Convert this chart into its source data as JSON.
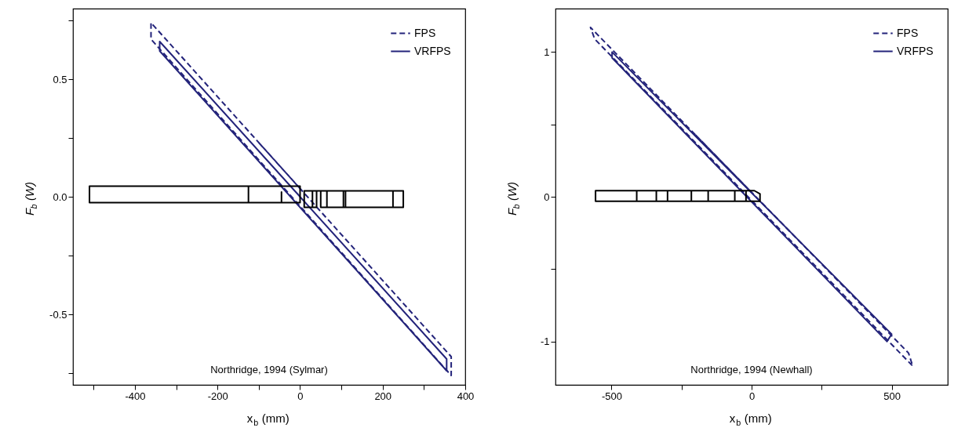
{
  "chart_data": [
    {
      "type": "line",
      "xlabel": "x$_{b}$ (mm)",
      "ylabel": "F$_{b}$ (W)",
      "annotations": [
        "Northridge, 1994 (Sylmar)"
      ],
      "xlim": [
        -550,
        400
      ],
      "xticks": [
        {
          "value": -500,
          "label": null
        },
        -400,
        {
          "value": -300,
          "label": null
        },
        -200,
        {
          "value": -100,
          "label": null
        },
        0,
        {
          "value": 100,
          "label": null
        },
        200,
        {
          "value": 300,
          "label": null
        },
        400
      ],
      "ylim": [
        -0.8,
        0.8
      ],
      "yticks": [
        {
          "value": -0.75,
          "label": null
        },
        -0.5,
        {
          "value": -0.25,
          "label": null
        },
        {
          "value": 0,
          "label": "0.0"
        },
        {
          "value": 0.25,
          "label": null
        },
        0.5,
        {
          "value": 0.75,
          "label": null
        }
      ],
      "grid": false,
      "legend": "top right",
      "series": [
        {
          "name": "FPS",
          "color": "#23237a",
          "line_style": "dashed",
          "x": [
            -100,
            366,
            366,
            -361,
            -361,
            0
          ],
          "values": [
            0.23,
            -0.68,
            -0.76,
            0.67,
            0.74,
            0.035
          ]
        },
        {
          "name": "VRFPS",
          "color": "#23237a",
          "line_style": "solid",
          "x": [
            -100,
            355,
            355,
            -340,
            -340,
            0
          ],
          "values": [
            0.194,
            -0.69,
            -0.74,
            0.62,
            0.66,
            0.0
          ]
        },
        {
          "color": "#000000",
          "line_style": "solid",
          "x": [
            -300,
            0,
            0,
            -45,
            -45,
            -45,
            -125,
            -125,
            -125,
            -510,
            -510,
            -250
          ],
          "values": [
            0.045,
            0.045,
            -0.025,
            -0.025,
            0.02,
            -0.025,
            -0.025,
            0.045,
            -0.025,
            -0.025,
            0.045,
            0.045
          ]
        },
        {
          "color": "#000000",
          "line_style": "solid",
          "x": [
            130,
            250,
            250,
            225,
            225,
            225,
            110,
            110,
            110,
            105,
            105,
            105,
            65,
            65,
            65,
            50,
            50,
            40,
            40,
            30,
            30,
            30,
            10,
            10,
            150
          ],
          "values": [
            0.025,
            0.025,
            -0.045,
            -0.045,
            0.025,
            -0.045,
            -0.045,
            0.025,
            -0.045,
            -0.045,
            0.025,
            -0.045,
            -0.045,
            0.025,
            -0.045,
            -0.045,
            0.025,
            0.025,
            -0.045,
            -0.045,
            0.025,
            -0.045,
            -0.045,
            0.025,
            0.025
          ]
        }
      ]
    },
    {
      "type": "line",
      "xlabel": "x$_{b}$ (mm)",
      "ylabel": "F$_{b}$ (W)",
      "annotations": [
        "Northridge, 1994 (Newhall)"
      ],
      "xlim": [
        -700,
        700
      ],
      "xticks": [
        -500,
        {
          "value": -250,
          "label": null
        },
        0,
        {
          "value": 250,
          "label": null
        },
        500
      ],
      "ylim": [
        -1.3,
        1.3
      ],
      "yticks": [
        -1,
        {
          "value": -0.5,
          "label": null
        },
        0,
        {
          "value": 0.5,
          "label": null
        },
        1
      ],
      "grid": false,
      "legend": "top right",
      "series": [
        {
          "name": "FPS",
          "color": "#23237a",
          "line_style": "dashed",
          "x": [
            -200,
            560,
            575,
            -560,
            -575,
            0
          ],
          "values": [
            0.427,
            -1.08,
            -1.17,
            1.09,
            1.17,
            0.03
          ]
        },
        {
          "name": "VRFPS",
          "color": "#23237a",
          "line_style": "solid",
          "x": [
            -200,
            500,
            483,
            -498,
            -498,
            0
          ],
          "values": [
            0.418,
            -0.95,
            -1.0,
            0.96,
            1.0,
            0.027
          ]
        },
        {
          "color": "#000000",
          "line_style": "solid",
          "x": [
            -300,
            10,
            30,
            30,
            -20,
            -20,
            -20,
            -60,
            -60,
            -60,
            -155,
            -155,
            -155,
            -215,
            -215,
            -215,
            -300,
            -300,
            -300,
            -340,
            -340,
            -340,
            -410,
            -410,
            -410,
            -557,
            -557,
            -250
          ],
          "values": [
            0.042,
            0.042,
            0.02,
            -0.031,
            -0.031,
            0.042,
            -0.031,
            -0.031,
            0.042,
            -0.031,
            -0.031,
            0.042,
            -0.031,
            -0.031,
            0.042,
            -0.031,
            -0.031,
            0.042,
            -0.031,
            -0.031,
            0.042,
            -0.031,
            -0.031,
            0.042,
            -0.031,
            -0.031,
            0.042,
            0.042
          ]
        }
      ]
    }
  ]
}
